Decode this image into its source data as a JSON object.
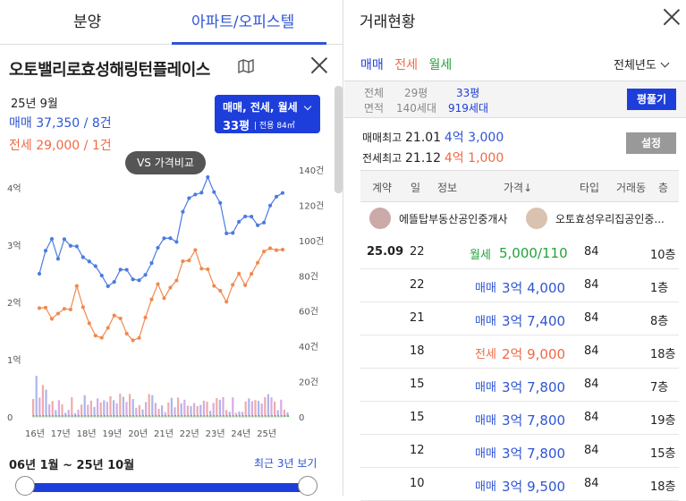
{
  "tabs": {
    "tab1": "분양",
    "tab2": "아파트/오피스텔"
  },
  "complex": {
    "name": "오토밸리로효성해링턴플레이스"
  },
  "summary": {
    "date": "25년 9월",
    "sale": "매매 37,350 / 8건",
    "lease": "전세 29,000 / 1건"
  },
  "filter": {
    "types": "매매, 전세, 월세",
    "size": "33평",
    "area": "전용 84㎡"
  },
  "compare_label": "VS 가격비교",
  "chart_data": {
    "type": "line",
    "x_labels": [
      "16년",
      "17년",
      "18년",
      "19년",
      "20년",
      "21년",
      "22년",
      "23년",
      "24년",
      "25년"
    ],
    "y_left_ticks": [
      "0",
      "1억",
      "2억",
      "3억",
      "4억"
    ],
    "y_right_ticks": [
      "0",
      "20건",
      "40건",
      "60건",
      "80건",
      "100건",
      "120건",
      "140건"
    ],
    "ylim_left": [
      0,
      4.4
    ],
    "ylim_right": [
      0,
      140
    ],
    "series": [
      {
        "name": "매매",
        "color": "#4a7be0",
        "values": [
          2.5,
          2.8,
          3.0,
          2.75,
          3.2,
          3.1,
          3.0,
          2.7,
          2.6,
          2.6,
          2.55,
          2.4,
          2.4,
          2.5,
          2.45,
          2.35,
          2.45,
          2.6,
          2.75,
          2.9,
          3.0,
          3.05,
          3.1,
          3.7,
          3.9,
          3.85,
          3.8,
          4.1,
          3.95,
          3.85,
          3.3,
          3.2,
          3.3,
          3.4,
          3.5,
          3.45,
          3.5,
          3.7,
          3.75,
          3.8
        ]
      },
      {
        "name": "전세",
        "color": "#f08a4e",
        "values": [
          1.8,
          1.8,
          1.7,
          1.9,
          2.0,
          1.9,
          2.2,
          1.8,
          1.6,
          1.5,
          1.5,
          1.6,
          1.7,
          1.6,
          1.4,
          1.4,
          1.5,
          1.8,
          2.0,
          2.2,
          2.0,
          2.3,
          2.5,
          2.8,
          2.7,
          2.8,
          2.5,
          2.6,
          2.4,
          2.3,
          2.0,
          2.2,
          2.4,
          2.3,
          2.6,
          2.8,
          2.9,
          2.85,
          2.8,
          2.9
        ]
      }
    ]
  },
  "period": "06년 1월 ~ 25년 10월",
  "recent": "최근 3년 보기",
  "right": {
    "title": "거래현황",
    "type_tabs": [
      "매매",
      "전세",
      "월세"
    ],
    "type_colors": [
      "#1d3edb",
      "#f06a45",
      "#22a33a"
    ],
    "year_filter": "전체년도",
    "info": {
      "l1": "전체",
      "l2": "면적",
      "v1": "29평",
      "v2": "140세대",
      "s1": "33평",
      "s2": "919세대"
    },
    "pyeong_btn": "평풀기",
    "high1_label": "매매최고",
    "high1_date": "21.01",
    "high1_price": "4억 3,000",
    "high2_label": "전세최고",
    "high2_date": "21.12",
    "high2_price": "4억 1,000",
    "settings_btn": "설정",
    "headers": [
      "계약",
      "일",
      "정보",
      "가격↓",
      "타입",
      "거래동",
      "층"
    ],
    "agents": [
      "에뜰탑부동산공인중개사",
      "오토효성우리집공인중..."
    ],
    "rows": [
      {
        "date": "25.09",
        "day": "22",
        "kind": "월세",
        "price": "5,000/110",
        "type": "84",
        "floor": "10층"
      },
      {
        "date": "",
        "day": "22",
        "kind": "매매",
        "price": "3억 4,000",
        "type": "84",
        "floor": "1층"
      },
      {
        "date": "",
        "day": "21",
        "kind": "매매",
        "price": "3억 7,400",
        "type": "84",
        "floor": "8층"
      },
      {
        "date": "",
        "day": "18",
        "kind": "전세",
        "price": "2억 9,000",
        "type": "84",
        "floor": "18층"
      },
      {
        "date": "",
        "day": "15",
        "kind": "매매",
        "price": "3억 7,800",
        "type": "84",
        "floor": "7층"
      },
      {
        "date": "",
        "day": "15",
        "kind": "매매",
        "price": "3억 7,800",
        "type": "84",
        "floor": "19층"
      },
      {
        "date": "",
        "day": "12",
        "kind": "매매",
        "price": "3억 7,800",
        "type": "84",
        "floor": "15층"
      },
      {
        "date": "",
        "day": "10",
        "kind": "매매",
        "price": "3억 9,500",
        "type": "84",
        "floor": "18층"
      }
    ]
  }
}
